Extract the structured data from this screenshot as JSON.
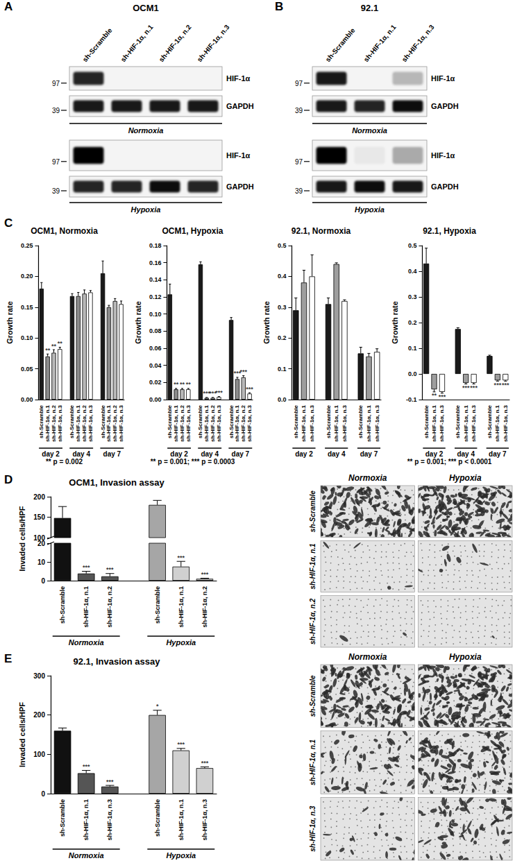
{
  "panel_letters": [
    "A",
    "B",
    "C",
    "D",
    "E"
  ],
  "blots": [
    {
      "title": "OCM1",
      "lanes": [
        "sh-Scramble",
        "sh-HIF-1α, n.1",
        "sh-HIF-1α, n.2",
        "sh-HIF-1α, n.3"
      ],
      "conditions": [
        {
          "label": "Normoxia",
          "rows": [
            {
              "protein": "HIF-1α",
              "marker": 97,
              "bands": [
                0.85,
                0,
                0,
                0
              ]
            },
            {
              "protein": "GAPDH",
              "marker": 39,
              "bands": [
                0.9,
                0.9,
                0.9,
                0.9
              ]
            }
          ]
        },
        {
          "label": "Hypoxia",
          "rows": [
            {
              "protein": "HIF-1α",
              "marker": 97,
              "bands": [
                1,
                0,
                0,
                0
              ]
            },
            {
              "protein": "GAPDH",
              "marker": 39,
              "bands": [
                0.85,
                0.85,
                0.95,
                0.85
              ]
            }
          ]
        }
      ]
    },
    {
      "title": "92.1",
      "lanes": [
        "sh-Scramble",
        "sh-HIF-1α, n.1",
        "sh-HIF-1α, n.3"
      ],
      "conditions": [
        {
          "label": "Normoxia",
          "rows": [
            {
              "protein": "HIF-1α",
              "marker": 97,
              "bands": [
                0.9,
                0,
                0.25
              ]
            },
            {
              "protein": "GAPDH",
              "marker": 39,
              "bands": [
                0.9,
                0.85,
                0.95
              ]
            }
          ]
        },
        {
          "label": "Hypoxia",
          "rows": [
            {
              "protein": "HIF-1α",
              "marker": 97,
              "bands": [
                1,
                0.05,
                0.3
              ]
            },
            {
              "protein": "GAPDH",
              "marker": 39,
              "bands": [
                0.9,
                0.95,
                0.9
              ]
            }
          ]
        }
      ]
    }
  ],
  "chart_data": [
    {
      "type": "bar",
      "title": "OCM1, Normoxia",
      "y_label": "Growth rate",
      "ylim": [
        0,
        0.25
      ],
      "yticks": [
        {
          "value": 0,
          "label": "0.00"
        },
        0.05,
        {
          "value": 0.1,
          "label": "0.10"
        },
        0.15,
        {
          "value": 0.2,
          "label": "0.20"
        },
        0.25
      ],
      "groups": [
        {
          "label": "day 2",
          "categories": [
            "sh-Scramble",
            "sh-HIF-1α, n.1",
            "sh-HIF-1α, n.2",
            "sh-HIF-1α, n.3"
          ],
          "values": [
            0.18,
            0.07,
            0.076,
            0.082
          ],
          "errors": [
            0.01,
            0.004,
            0.005,
            0.003
          ],
          "significance": [
            null,
            "**",
            "**",
            "**"
          ],
          "colors": [
            "#1a1a1a",
            "#8c8c8c",
            "#b8b8b8",
            "#ffffff"
          ]
        },
        {
          "label": "day 4",
          "categories": [
            "sh-Scramble",
            "sh-HIF-1α, n.1",
            "sh-HIF-1α, n.2",
            "sh-HIF-1α, n.3"
          ],
          "values": [
            0.168,
            0.168,
            0.172,
            0.174
          ],
          "errors": [
            0.004,
            0.006,
            0.006,
            0.003
          ],
          "significance": [
            null,
            null,
            null,
            null
          ],
          "colors": [
            "#1a1a1a",
            "#8c8c8c",
            "#b8b8b8",
            "#ffffff"
          ]
        },
        {
          "label": "day 7",
          "categories": [
            "sh-Scramble",
            "sh-HIF-1α, n.1",
            "sh-HIF-1α, n.2",
            "sh-HIF-1α, n.3"
          ],
          "values": [
            0.205,
            0.15,
            0.16,
            0.155
          ],
          "errors": [
            0.02,
            0.003,
            0.004,
            0.005
          ],
          "significance": [
            null,
            null,
            null,
            null
          ],
          "colors": [
            "#1a1a1a",
            "#8c8c8c",
            "#b8b8b8",
            "#ffffff"
          ]
        }
      ],
      "note": "** p = 0.002"
    },
    {
      "type": "bar",
      "title": "OCM1, Hypoxia",
      "y_label": "Growth rate",
      "ylim": [
        0,
        0.18
      ],
      "yticks": [
        {
          "value": 0,
          "label": "0.00"
        },
        0.02,
        0.04,
        0.06,
        0.08,
        {
          "value": 0.1,
          "label": "0.10"
        },
        0.12,
        0.14,
        0.16,
        0.18
      ],
      "groups": [
        {
          "label": "day 2",
          "categories": [
            "sh-Scramble",
            "sh-HIF-1α, n.1",
            "sh-HIF-1α, n.2",
            "sh-HIF-1α, n.3"
          ],
          "values": [
            0.123,
            0.012,
            0.012,
            0.012
          ],
          "errors": [
            0.012,
            0.001,
            0.001,
            0.001
          ],
          "significance": [
            null,
            "**",
            "**",
            "**"
          ],
          "colors": [
            "#1a1a1a",
            "#8c8c8c",
            "#b8b8b8",
            "#ffffff"
          ]
        },
        {
          "label": "day 4",
          "categories": [
            "sh-Scramble",
            "sh-HIF-1α, n.1",
            "sh-HIF-1α, n.2",
            "sh-HIF-1α, n.3"
          ],
          "values": [
            0.158,
            0.002,
            0.002,
            0.003
          ],
          "errors": [
            0.003,
            0.0005,
            0.0005,
            0.0005
          ],
          "significance": [
            null,
            "***",
            "***",
            "***"
          ],
          "colors": [
            "#1a1a1a",
            "#8c8c8c",
            "#b8b8b8",
            "#ffffff"
          ]
        },
        {
          "label": "day 7",
          "categories": [
            "sh-Scramble",
            "sh-HIF-1α, n.1",
            "sh-HIF-1α, n.2",
            "sh-HIF-1α, n.3"
          ],
          "values": [
            0.093,
            0.024,
            0.026,
            0.007
          ],
          "errors": [
            0.003,
            0.002,
            0.002,
            0.001
          ],
          "significance": [
            null,
            "***",
            "***",
            "***"
          ],
          "colors": [
            "#1a1a1a",
            "#8c8c8c",
            "#b8b8b8",
            "#ffffff"
          ]
        }
      ],
      "note": "** p = 0.001; *** p = 0.0003"
    },
    {
      "type": "bar",
      "title": "92.1, Normoxia",
      "y_label": "Growth rate",
      "ylim": [
        0,
        0.5
      ],
      "yticks": [
        {
          "value": 0,
          "label": "0.0"
        },
        0.1,
        0.2,
        0.3,
        0.4,
        0.5
      ],
      "groups": [
        {
          "label": "day 2",
          "categories": [
            "sh-Scramble",
            "sh-HIF-1α, n.1",
            "sh-HIF-1α, n.3"
          ],
          "values": [
            0.29,
            0.38,
            0.4
          ],
          "errors": [
            0.04,
            0.04,
            0.07
          ],
          "significance": [
            null,
            null,
            null
          ],
          "colors": [
            "#1a1a1a",
            "#9e9e9e",
            "#ffffff"
          ]
        },
        {
          "label": "day 4",
          "categories": [
            "sh-Scramble",
            "sh-HIF-1α, n.1",
            "sh-HIF-1α, n.3"
          ],
          "values": [
            0.31,
            0.44,
            0.32
          ],
          "errors": [
            0.02,
            0.004,
            0.004
          ],
          "significance": [
            null,
            null,
            null
          ],
          "colors": [
            "#1a1a1a",
            "#9e9e9e",
            "#ffffff"
          ]
        },
        {
          "label": "day 7",
          "categories": [
            "sh-Scramble",
            "sh-HIF-1α, n.1",
            "sh-HIF-1α, n.3"
          ],
          "values": [
            0.15,
            0.14,
            0.155
          ],
          "errors": [
            0.02,
            0.01,
            0.01
          ],
          "significance": [
            null,
            null,
            null
          ],
          "colors": [
            "#1a1a1a",
            "#9e9e9e",
            "#ffffff"
          ]
        }
      ]
    },
    {
      "type": "bar",
      "title": "92.1, Hypoxia",
      "y_label": "Growth rate",
      "ylim": [
        -0.1,
        0.5
      ],
      "yticks": [
        -0.1,
        {
          "value": 0,
          "label": "0.0"
        },
        0.1,
        0.2,
        0.3,
        0.4,
        0.5
      ],
      "groups": [
        {
          "label": "day 2",
          "categories": [
            "sh-Scramble",
            "sh-HIF-1α, n.1",
            "sh-HIF-1α, n.3"
          ],
          "values": [
            0.43,
            -0.06,
            -0.07
          ],
          "errors": [
            0.06,
            0.01,
            0.005
          ],
          "significance": [
            null,
            "**",
            "***"
          ],
          "colors": [
            "#1a1a1a",
            "#9e9e9e",
            "#ffffff"
          ]
        },
        {
          "label": "day 4",
          "categories": [
            "sh-Scramble",
            "sh-HIF-1α, n.1",
            "sh-HIF-1α, n.3"
          ],
          "values": [
            0.175,
            -0.035,
            -0.035
          ],
          "errors": [
            0.005,
            0.004,
            0.004
          ],
          "significance": [
            null,
            "***",
            "***"
          ],
          "colors": [
            "#1a1a1a",
            "#9e9e9e",
            "#ffffff"
          ]
        },
        {
          "label": "day 7",
          "categories": [
            "sh-Scramble",
            "sh-HIF-1α, n.1",
            "sh-HIF-1α, n.3"
          ],
          "values": [
            0.07,
            -0.025,
            -0.025
          ],
          "errors": [
            0.003,
            0.003,
            0.003
          ],
          "significance": [
            null,
            "***",
            "***"
          ],
          "colors": [
            "#1a1a1a",
            "#9e9e9e",
            "#ffffff"
          ]
        }
      ],
      "note": "** p = 0.001; *** p < 0.0001"
    },
    {
      "type": "bar",
      "title": "OCM1, Invasion assay",
      "y_label": "Invaded cells/HPF",
      "ylim": [
        0,
        200
      ],
      "ybreak": [
        20,
        100
      ],
      "yticks": [
        0,
        10,
        20,
        100,
        150,
        200
      ],
      "groups": [
        {
          "label": "Normoxia",
          "categories": [
            "sh-Scramble",
            "sh-HIF-1α, n.1",
            "sh-HIF-1α, n.2"
          ],
          "values": [
            148,
            3.8,
            2.3
          ],
          "errors": [
            28,
            1.2,
            1.5
          ],
          "significance": [
            null,
            "***",
            "***"
          ],
          "colors": [
            "#111111",
            "#555555",
            "#555555"
          ]
        },
        {
          "label": "Hypoxia",
          "categories": [
            "sh-Scramble",
            "sh-HIF-1α, n.1",
            "sh-HIF-1α, n.2"
          ],
          "values": [
            180,
            7.5,
            1.0
          ],
          "errors": [
            11,
            2.8,
            0.3
          ],
          "significance": [
            null,
            "***",
            "***"
          ],
          "colors": [
            "#a6a6a6",
            "#d0d0d0",
            "#d0d0d0"
          ]
        }
      ],
      "micrographs": {
        "columns": [
          "Normoxia",
          "Hypoxia"
        ],
        "rows": [
          "sh-Scramble",
          "sh-HIF-1α, n.1",
          "sh-HIF-1α, n.2"
        ]
      }
    },
    {
      "type": "bar",
      "title": "92.1, Invasion assay",
      "y_label": "Invaded cells/HPF",
      "ylim": [
        0,
        300
      ],
      "yticks": [
        0,
        100,
        200,
        300
      ],
      "groups": [
        {
          "label": "Normoxia",
          "categories": [
            "sh-Scramble",
            "sh-HIF-1α, n.1",
            "sh-HIF-1α, n.3"
          ],
          "values": [
            160,
            52,
            18
          ],
          "errors": [
            7,
            7,
            3
          ],
          "significance": [
            null,
            "***",
            "***"
          ],
          "colors": [
            "#111111",
            "#555555",
            "#555555"
          ]
        },
        {
          "label": "Hypoxia",
          "categories": [
            "sh-Scramble",
            "sh-HIF-1α, n.1",
            "sh-HIF-1α, n.3"
          ],
          "values": [
            200,
            110,
            65
          ],
          "errors": [
            12,
            5,
            3
          ],
          "significance": [
            "*",
            "***",
            "***"
          ],
          "colors": [
            "#a6a6a6",
            "#d0d0d0",
            "#d0d0d0"
          ]
        }
      ],
      "micrographs": {
        "columns": [
          "Normoxia",
          "Hypoxia"
        ],
        "rows": [
          "sh-Scramble",
          "sh-HIF-1α, n.1",
          "sh-HIF-1α, n.3"
        ]
      }
    }
  ]
}
